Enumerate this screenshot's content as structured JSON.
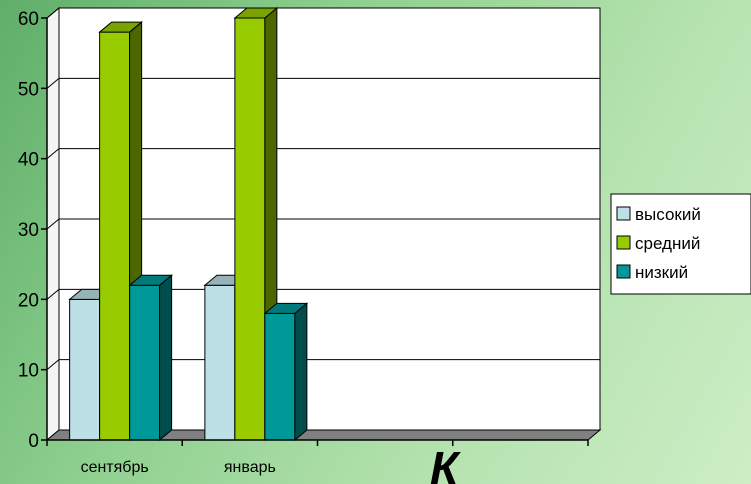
{
  "chart_data": {
    "type": "bar",
    "title": "",
    "xlabel": "",
    "ylabel": "",
    "ylim": [
      0,
      60
    ],
    "yticks": [
      0,
      10,
      20,
      30,
      40,
      50,
      60
    ],
    "grid": true,
    "legend_position": "right",
    "categories": [
      "сентябрь",
      "январь",
      "",
      ""
    ],
    "series": [
      {
        "name": "высокий",
        "values": [
          20,
          22,
          null,
          null
        ],
        "color": "#bde0e6"
      },
      {
        "name": "средний",
        "values": [
          58,
          60,
          null,
          null
        ],
        "color": "#99cc00"
      },
      {
        "name": "низкий",
        "values": [
          22,
          18,
          null,
          null
        ],
        "color": "#009999"
      }
    ]
  },
  "overlay_text": "К"
}
